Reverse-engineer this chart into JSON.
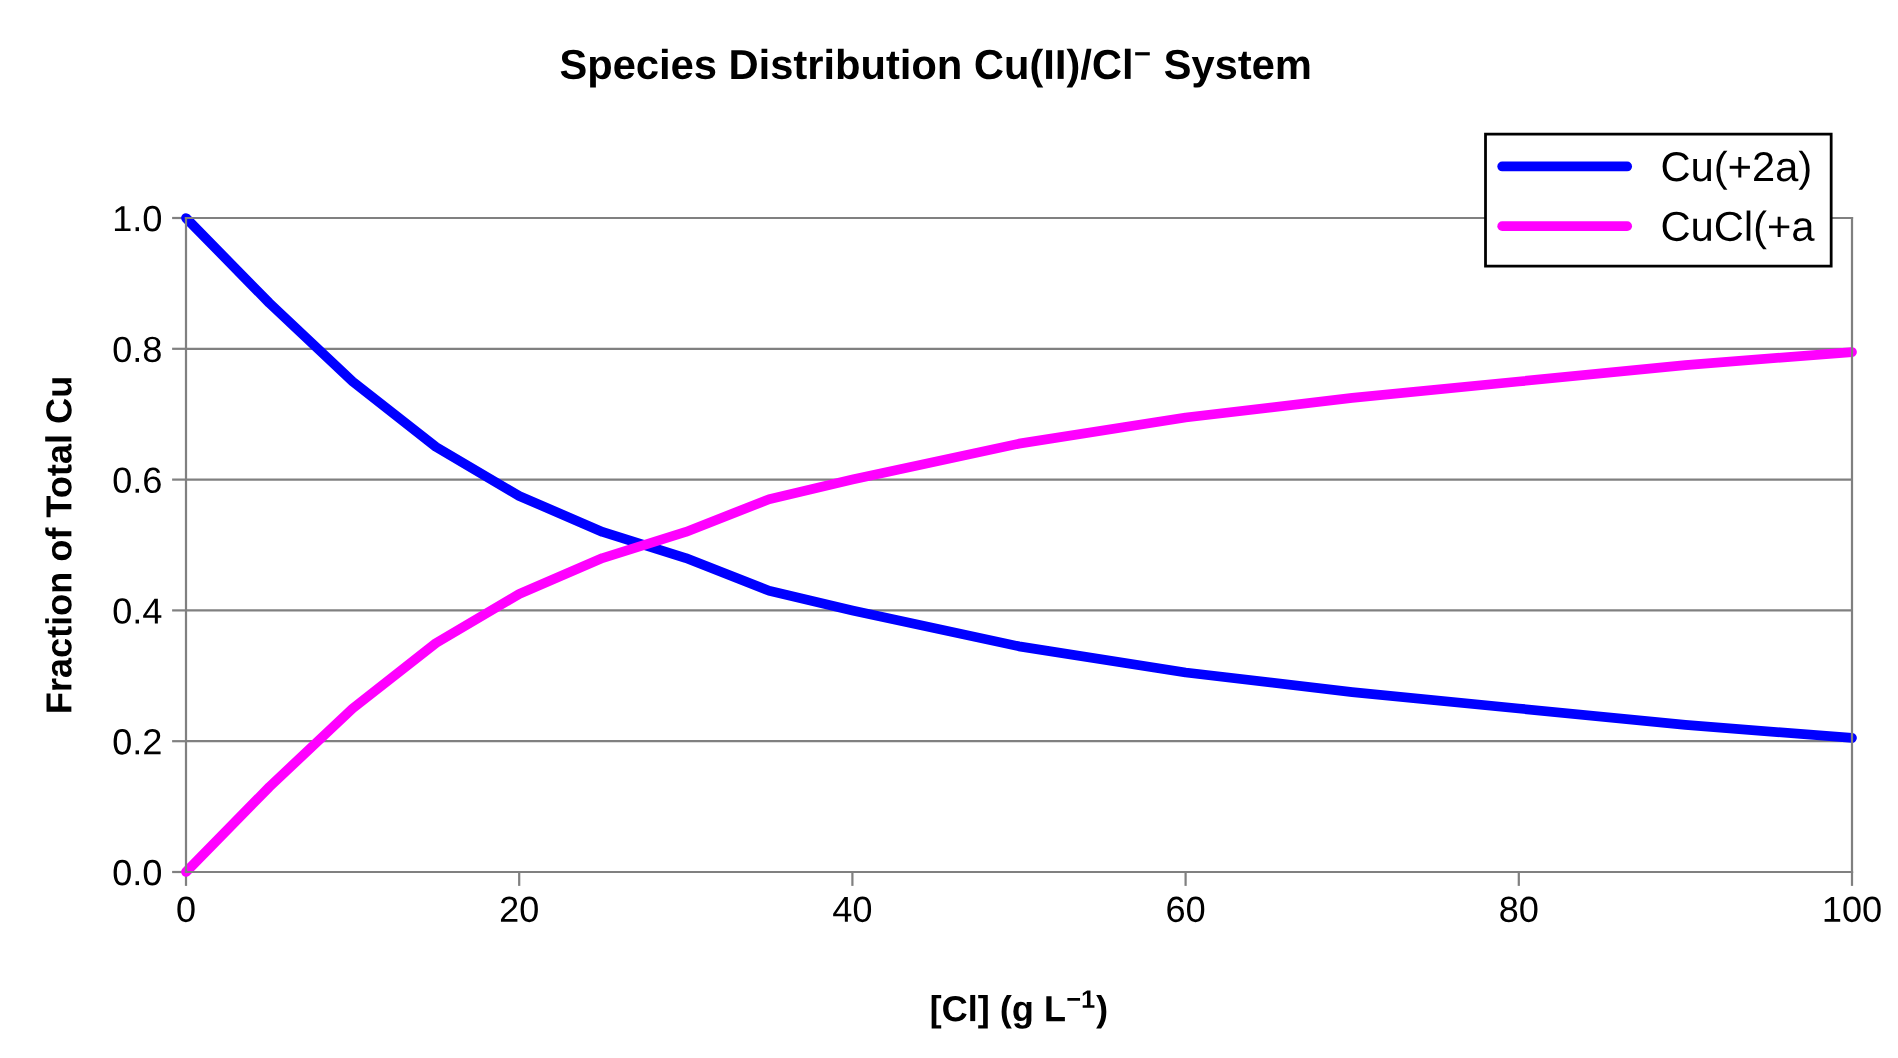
{
  "chart_data": {
    "type": "line",
    "title": "Species Distribution Cu(II)/Cl$^{−}$ System",
    "xlabel": "[Cl] (g L$^{−1}$)",
    "ylabel": "Fraction of Total Cu",
    "x": [
      0,
      5,
      10,
      15,
      20,
      25,
      30,
      35,
      40,
      50,
      60,
      70,
      80,
      90,
      100
    ],
    "series": [
      {
        "name": "Cu(+2a)",
        "color": "#0000ff",
        "values": [
          1.0,
          0.87,
          0.75,
          0.65,
          0.575,
          0.52,
          0.48,
          0.43,
          0.4,
          0.345,
          0.305,
          0.275,
          0.25,
          0.225,
          0.205
        ]
      },
      {
        "name": "CuCl(+a",
        "color": "#ff00ff",
        "values": [
          0.0,
          0.13,
          0.25,
          0.35,
          0.425,
          0.48,
          0.52,
          0.57,
          0.6,
          0.655,
          0.695,
          0.725,
          0.75,
          0.775,
          0.795
        ]
      }
    ],
    "xlim": [
      0,
      100
    ],
    "xticks": [
      0,
      20,
      40,
      60,
      80,
      100
    ],
    "ylim": [
      0,
      1
    ],
    "yticks": [
      {
        "value": 0,
        "label": "0.0"
      },
      {
        "value": 0.2,
        "label": "0.2"
      },
      {
        "value": 0.4,
        "label": "0.4"
      },
      {
        "value": 0.6,
        "label": "0.6"
      },
      {
        "value": 0.8,
        "label": "0.8"
      },
      {
        "value": 1,
        "label": "1.0"
      }
    ],
    "grid": "y",
    "legend": "top right",
    "marker": "none",
    "line_style": "solid"
  }
}
